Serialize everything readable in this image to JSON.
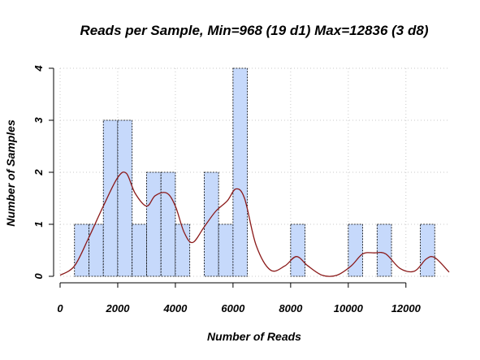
{
  "chart_data": {
    "type": "bar",
    "title": "Reads per Sample, Min=968 (19 d1) Max=12836 (3 d8)",
    "xlabel": "Number of Reads",
    "ylabel": "Number of Samples",
    "xlim": [
      0,
      13500
    ],
    "ylim": [
      0,
      4
    ],
    "x_ticks": [
      0,
      2000,
      4000,
      6000,
      8000,
      10000,
      12000
    ],
    "x_tick_labels": [
      "0",
      "2000",
      "4000",
      "6000",
      "8000",
      "10000",
      "12000"
    ],
    "y_ticks": [
      0,
      1,
      2,
      3,
      4
    ],
    "y_tick_labels": [
      "0",
      "1",
      "2",
      "3",
      "4"
    ],
    "grid": true,
    "bin_width": 500,
    "bins": [
      {
        "start": 500,
        "end": 1000,
        "count": 1
      },
      {
        "start": 1000,
        "end": 1500,
        "count": 1
      },
      {
        "start": 1500,
        "end": 2000,
        "count": 3
      },
      {
        "start": 2000,
        "end": 2500,
        "count": 3
      },
      {
        "start": 2500,
        "end": 3000,
        "count": 1
      },
      {
        "start": 3000,
        "end": 3500,
        "count": 2
      },
      {
        "start": 3500,
        "end": 4000,
        "count": 2
      },
      {
        "start": 4000,
        "end": 4500,
        "count": 1
      },
      {
        "start": 4500,
        "end": 5000,
        "count": 0
      },
      {
        "start": 5000,
        "end": 5500,
        "count": 2
      },
      {
        "start": 5500,
        "end": 6000,
        "count": 1
      },
      {
        "start": 6000,
        "end": 6500,
        "count": 4
      },
      {
        "start": 8000,
        "end": 8500,
        "count": 1
      },
      {
        "start": 10000,
        "end": 10500,
        "count": 1
      },
      {
        "start": 11000,
        "end": 11500,
        "count": 1
      },
      {
        "start": 12500,
        "end": 13000,
        "count": 1
      }
    ],
    "density_curve": {
      "x": [
        0,
        500,
        1000,
        1500,
        2000,
        2300,
        2600,
        3000,
        3300,
        3700,
        4000,
        4300,
        4600,
        5000,
        5400,
        5800,
        6100,
        6400,
        6800,
        7300,
        7800,
        8200,
        8600,
        9100,
        9600,
        10100,
        10500,
        10900,
        11300,
        11800,
        12300,
        12700,
        13000,
        13500
      ],
      "y": [
        0.02,
        0.2,
        0.75,
        1.35,
        1.9,
        1.98,
        1.6,
        1.35,
        1.55,
        1.6,
        1.35,
        0.85,
        0.65,
        0.95,
        1.25,
        1.45,
        1.68,
        1.5,
        0.6,
        0.12,
        0.2,
        0.38,
        0.2,
        0.02,
        0.02,
        0.2,
        0.43,
        0.45,
        0.43,
        0.15,
        0.1,
        0.33,
        0.36,
        0.08
      ]
    },
    "colors": {
      "bar_fill": "#c6d9fb",
      "bar_stroke": "#000000",
      "density_line": "#8b1a1a",
      "grid": "#c8c8c8"
    }
  }
}
